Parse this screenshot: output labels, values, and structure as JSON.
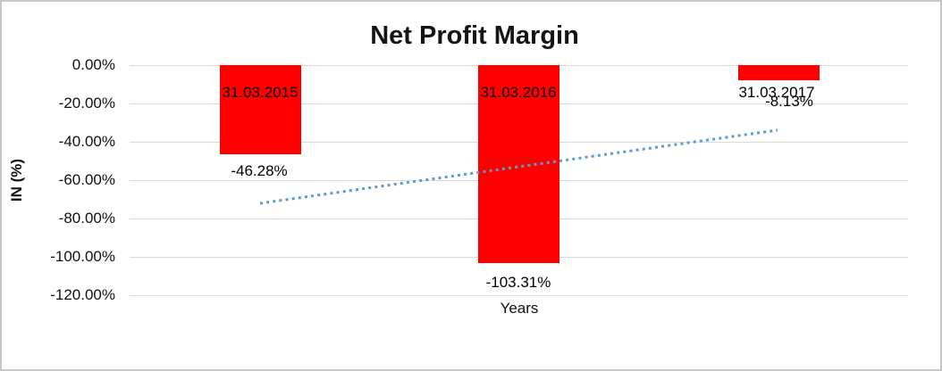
{
  "chart_data": {
    "type": "bar",
    "title": "Net Profit Margin",
    "xlabel": "Years",
    "ylabel": "IN (%)",
    "categories": [
      "31.03.2015",
      "31.03.2016",
      "31.03.2017"
    ],
    "series": [
      {
        "name": "Net Profit Margin",
        "values": [
          -46.28,
          -103.31,
          -8.13
        ]
      }
    ],
    "values": [
      -46.28,
      -103.31,
      -8.13
    ],
    "value_labels": [
      "-46.28%",
      "-103.31%",
      "-8.13%"
    ],
    "ylim": [
      -120,
      0
    ],
    "y_ticks": [
      0,
      -20,
      -40,
      -60,
      -80,
      -100,
      -120
    ],
    "y_tick_labels": [
      "0.00%",
      "-20.00%",
      "-40.00%",
      "-60.00%",
      "-80.00%",
      "-100.00%",
      "-120.00%"
    ],
    "grid": "horizontal-gridlines-on",
    "legend": "none",
    "bar_color": "#ff0000",
    "gridline_color": "#d9d9d9",
    "trendline": {
      "type": "linear",
      "style": "dotted",
      "color": "#5b9bd5",
      "start_pct": -72.1,
      "end_pct": -33.9
    }
  }
}
